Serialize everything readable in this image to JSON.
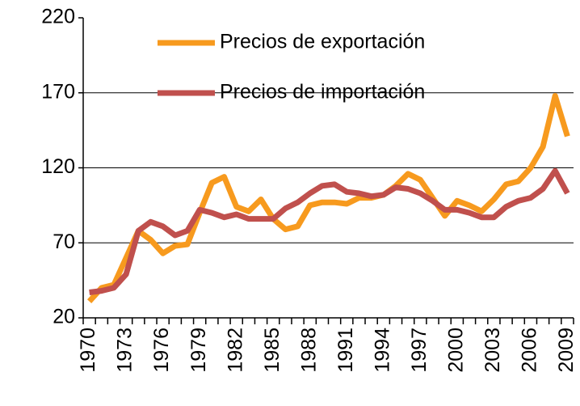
{
  "chart_data": {
    "type": "line",
    "categories": [
      "1970",
      null,
      null,
      "1973",
      null,
      null,
      "1976",
      null,
      null,
      "1979",
      null,
      null,
      "1982",
      null,
      null,
      "1985",
      null,
      null,
      "1988",
      null,
      null,
      "1991",
      null,
      null,
      "1994",
      null,
      null,
      "1997",
      null,
      null,
      "2000",
      null,
      null,
      "2003",
      null,
      null,
      "2006",
      null,
      null,
      "2009"
    ],
    "series": [
      {
        "name": "Precios de exportación",
        "color": "#f79a1e",
        "values": [
          31,
          40,
          42,
          60,
          78,
          72,
          63,
          68,
          69,
          90,
          110,
          114,
          94,
          91,
          99,
          86,
          79,
          81,
          95,
          97,
          97,
          96,
          100,
          100,
          102,
          108,
          116,
          112,
          100,
          88,
          98,
          95,
          91,
          99,
          109,
          111,
          120,
          134,
          168,
          141
        ]
      },
      {
        "name": "Precios de importación",
        "color": "#c0504d",
        "values": [
          37,
          38,
          40,
          49,
          78,
          84,
          81,
          75,
          78,
          92,
          90,
          87,
          89,
          86,
          86,
          86,
          93,
          97,
          103,
          108,
          109,
          104,
          103,
          101,
          102,
          107,
          106,
          103,
          98,
          92,
          92,
          90,
          87,
          87,
          94,
          98,
          100,
          106,
          118,
          103
        ]
      }
    ],
    "ylim": [
      20,
      220
    ],
    "yticks": [
      20,
      70,
      120,
      170,
      220
    ],
    "grid": true
  }
}
